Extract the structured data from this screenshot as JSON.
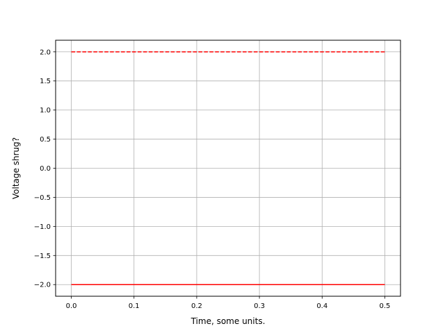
{
  "chart_data": {
    "type": "line",
    "title": "",
    "xlabel": "Time, some units.",
    "ylabel": "Voltage shrug?",
    "xlim": [
      -0.025,
      0.525
    ],
    "ylim": [
      -2.2,
      2.2
    ],
    "grid": true,
    "xticks": [
      0.0,
      0.1,
      0.2,
      0.3,
      0.4,
      0.5
    ],
    "xtick_labels": [
      "0.0",
      "0.1",
      "0.2",
      "0.3",
      "0.4",
      "0.5"
    ],
    "yticks": [
      -2.0,
      -1.5,
      -1.0,
      -0.5,
      0.0,
      0.5,
      1.0,
      1.5,
      2.0
    ],
    "ytick_labels": [
      "−2.0",
      "−1.5",
      "−1.0",
      "−0.5",
      "0.0",
      "0.5",
      "1.0",
      "1.5",
      "2.0"
    ],
    "series": [
      {
        "x": [
          0.0,
          0.5
        ],
        "y": [
          2.0,
          2.0
        ],
        "color": "#ff0000",
        "style": "dashed"
      },
      {
        "x": [
          0.0,
          0.5
        ],
        "y": [
          -2.0,
          -2.0
        ],
        "color": "#ff0000",
        "style": "solid"
      }
    ]
  }
}
